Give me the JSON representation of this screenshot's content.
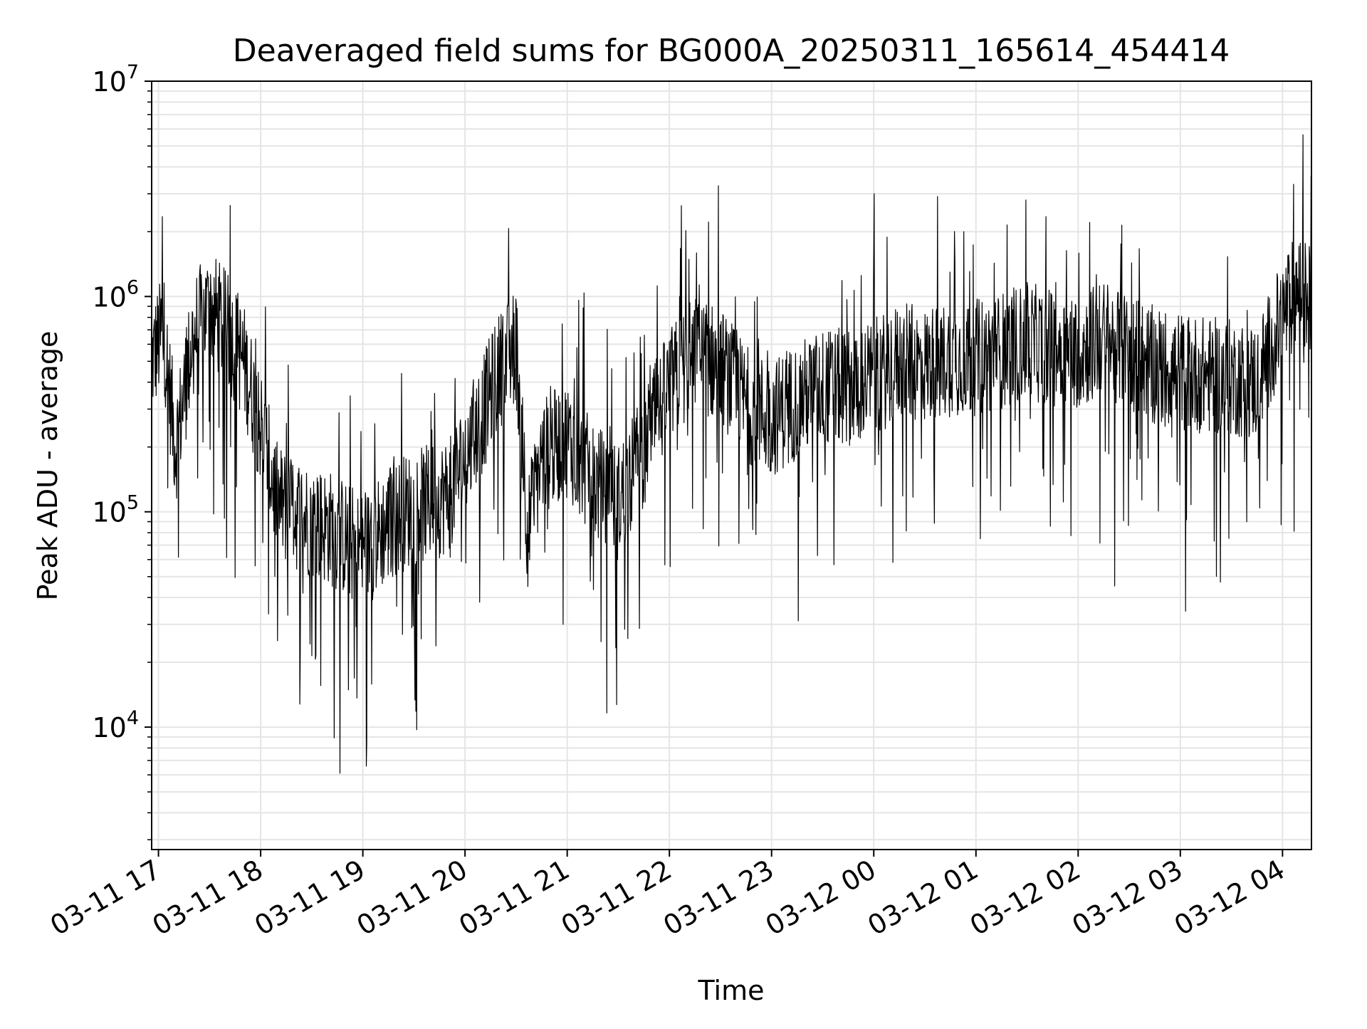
{
  "chart_data": {
    "type": "line",
    "title": "Deaveraged field sums for BG000A_20250311_165614_454414",
    "xlabel": "Time",
    "ylabel": "Peak ADU - average",
    "yscale": "log",
    "xlim": [
      "2025-03-11 16:56",
      "2025-03-12 04:17"
    ],
    "ylim": [
      2700,
      10000000
    ],
    "grid": true,
    "legend": "none",
    "colors": {
      "line": "#000000",
      "grid": "#e5e5e5",
      "axes": "#000000"
    },
    "x_ticks": [
      "03-11 17",
      "03-11 18",
      "03-11 19",
      "03-11 20",
      "03-11 21",
      "03-11 22",
      "03-11 23",
      "03-12 00",
      "03-12 01",
      "03-12 02",
      "03-12 03",
      "03-12 04"
    ],
    "y_ticks": [
      {
        "value": 10000,
        "base": "10",
        "exp": "4"
      },
      {
        "value": 100000,
        "base": "10",
        "exp": "5"
      },
      {
        "value": 1000000,
        "base": "10",
        "exp": "6"
      },
      {
        "value": 10000000,
        "base": "10",
        "exp": "7"
      }
    ],
    "series": [
      {
        "x": [
          "2025-03-11 16:56",
          "2025-03-11 17:03",
          "2025-03-11 17:10",
          "2025-03-11 17:15",
          "2025-03-11 17:20",
          "2025-03-11 17:30",
          "2025-03-11 17:40",
          "2025-03-11 17:50",
          "2025-03-11 18:00",
          "2025-03-11 18:10",
          "2025-03-11 18:20",
          "2025-03-11 18:30",
          "2025-03-11 18:40",
          "2025-03-11 18:50",
          "2025-03-11 19:00",
          "2025-03-11 19:10",
          "2025-03-11 19:20",
          "2025-03-11 19:30",
          "2025-03-11 19:40",
          "2025-03-11 19:50",
          "2025-03-11 20:00",
          "2025-03-11 20:10",
          "2025-03-11 20:20",
          "2025-03-11 20:30",
          "2025-03-11 20:37",
          "2025-03-11 20:45",
          "2025-03-11 21:00",
          "2025-03-11 21:15",
          "2025-03-11 21:30",
          "2025-03-11 21:45",
          "2025-03-11 22:00",
          "2025-03-11 22:15",
          "2025-03-11 22:30",
          "2025-03-11 22:45",
          "2025-03-11 23:00",
          "2025-03-11 23:15",
          "2025-03-11 23:30",
          "2025-03-11 23:45",
          "2025-03-12 00:00",
          "2025-03-12 00:15",
          "2025-03-12 00:30",
          "2025-03-12 00:45",
          "2025-03-12 01:00",
          "2025-03-12 01:15",
          "2025-03-12 01:30",
          "2025-03-12 01:45",
          "2025-03-12 02:00",
          "2025-03-12 02:15",
          "2025-03-12 02:30",
          "2025-03-12 02:45",
          "2025-03-12 03:00",
          "2025-03-12 03:15",
          "2025-03-12 03:30",
          "2025-03-12 03:45",
          "2025-03-12 04:00",
          "2025-03-12 04:08",
          "2025-03-12 04:17"
        ],
        "y": [
          500000,
          700000,
          200000,
          350000,
          650000,
          900000,
          700000,
          500000,
          250000,
          110000,
          100000,
          90000,
          85000,
          75000,
          65000,
          80000,
          95000,
          105000,
          110000,
          120000,
          180000,
          280000,
          450000,
          600000,
          80000,
          180000,
          220000,
          140000,
          110000,
          200000,
          380000,
          550000,
          480000,
          320000,
          270000,
          330000,
          380000,
          380000,
          420000,
          500000,
          480000,
          520000,
          520000,
          560000,
          620000,
          580000,
          560000,
          640000,
          560000,
          480000,
          450000,
          430000,
          420000,
          400000,
          800000,
          1050000,
          950000
        ]
      }
    ]
  }
}
